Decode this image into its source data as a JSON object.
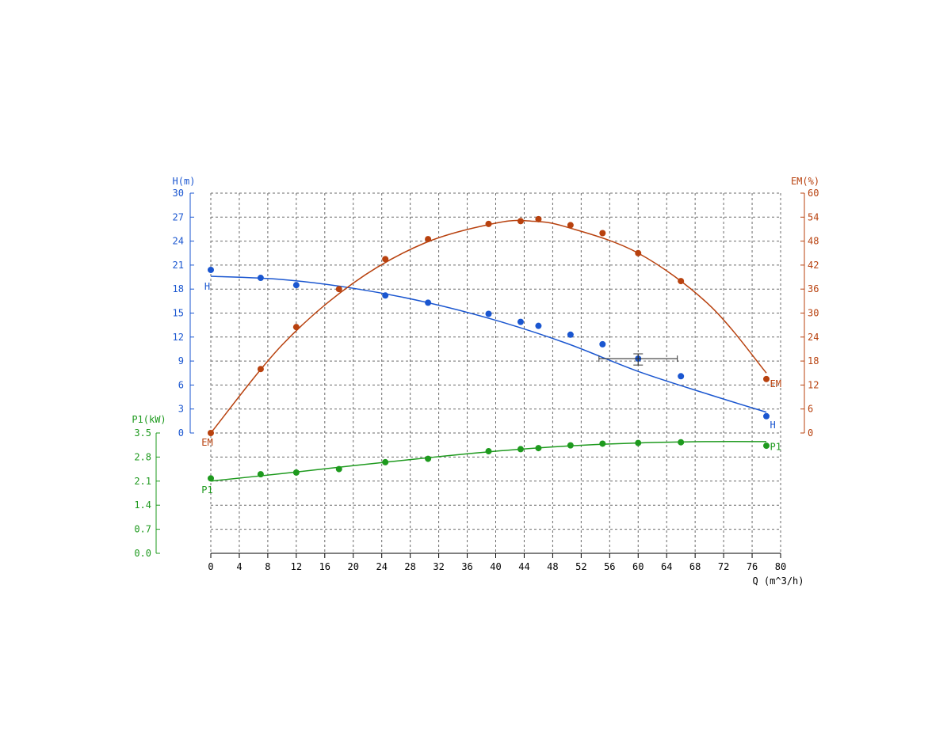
{
  "colors": {
    "H": "#1a56d0",
    "EM": "#b8410e",
    "P1": "#1e9a1e",
    "axis": "#000000",
    "grid": "#6a6a6a"
  },
  "chart_data": {
    "type": "scatter",
    "x_axis": {
      "label": "Q (m^3/h)",
      "range": [
        0,
        80
      ],
      "ticks": [
        "0",
        "4",
        "8",
        "12",
        "16",
        "20",
        "24",
        "28",
        "32",
        "36",
        "40",
        "44",
        "48",
        "52",
        "56",
        "60",
        "64",
        "68",
        "72",
        "76",
        "80"
      ]
    },
    "y_axes": [
      {
        "key": "H",
        "label": "H(m)",
        "side": "left",
        "range": [
          0,
          30
        ],
        "ticks": [
          "0",
          "3",
          "6",
          "9",
          "12",
          "15",
          "18",
          "21",
          "24",
          "27",
          "30"
        ]
      },
      {
        "key": "EM",
        "label": "EM(%)",
        "side": "right",
        "range": [
          0,
          60
        ],
        "ticks": [
          "0",
          "6",
          "12",
          "18",
          "24",
          "30",
          "36",
          "42",
          "48",
          "54",
          "60"
        ]
      },
      {
        "key": "P1",
        "label": "P1(kW)",
        "side": "left",
        "range": [
          0,
          3.5
        ],
        "ticks": [
          "0.0",
          "0.7",
          "1.4",
          "2.1",
          "2.8",
          "3.5"
        ]
      }
    ],
    "grid": true,
    "series": [
      {
        "name": "H",
        "axis": "H",
        "points": [
          [
            0,
            20.4
          ],
          [
            7,
            19.4
          ],
          [
            12,
            18.5
          ],
          [
            24.5,
            17.2
          ],
          [
            30.5,
            16.3
          ],
          [
            39,
            14.9
          ],
          [
            43.5,
            13.9
          ],
          [
            46,
            13.4
          ],
          [
            50.5,
            12.3
          ],
          [
            55,
            11.1
          ],
          [
            60,
            9.3
          ],
          [
            66,
            7.1
          ],
          [
            78,
            2.1
          ]
        ],
        "fit": [
          [
            0,
            19.6
          ],
          [
            10,
            19.2
          ],
          [
            20,
            18.1
          ],
          [
            30,
            16.4
          ],
          [
            40,
            14.1
          ],
          [
            50,
            11.2
          ],
          [
            60,
            7.7
          ],
          [
            70,
            4.8
          ],
          [
            78,
            2.6
          ]
        ]
      },
      {
        "name": "EM",
        "axis": "EM",
        "points": [
          [
            0,
            0
          ],
          [
            7,
            16
          ],
          [
            12,
            26.5
          ],
          [
            18,
            36
          ],
          [
            24.5,
            43.5
          ],
          [
            30.5,
            48.5
          ],
          [
            39,
            52.3
          ],
          [
            43.5,
            53
          ],
          [
            46,
            53.5
          ],
          [
            50.5,
            52
          ],
          [
            55,
            50
          ],
          [
            60,
            45
          ],
          [
            66,
            38
          ],
          [
            78,
            13.5
          ]
        ],
        "fit": [
          [
            0,
            0
          ],
          [
            10,
            22
          ],
          [
            20,
            37.5
          ],
          [
            30,
            47.5
          ],
          [
            40,
            52.5
          ],
          [
            45,
            53
          ],
          [
            50,
            51.5
          ],
          [
            60,
            45
          ],
          [
            70,
            32
          ],
          [
            78,
            15
          ]
        ]
      },
      {
        "name": "P1",
        "axis": "P1",
        "points": [
          [
            0,
            2.18
          ],
          [
            7,
            2.3
          ],
          [
            12,
            2.35
          ],
          [
            18,
            2.45
          ],
          [
            24.5,
            2.65
          ],
          [
            30.5,
            2.75
          ],
          [
            39,
            2.97
          ],
          [
            43.5,
            3.03
          ],
          [
            46,
            3.06
          ],
          [
            50.5,
            3.14
          ],
          [
            55,
            3.19
          ],
          [
            60,
            3.21
          ],
          [
            66,
            3.23
          ],
          [
            78,
            3.13
          ]
        ],
        "fit": [
          [
            0,
            2.1
          ],
          [
            10,
            2.32
          ],
          [
            20,
            2.55
          ],
          [
            30,
            2.77
          ],
          [
            40,
            2.97
          ],
          [
            50,
            3.12
          ],
          [
            60,
            3.21
          ],
          [
            70,
            3.25
          ],
          [
            78,
            3.25
          ]
        ]
      }
    ],
    "operating_point": {
      "Q": 60,
      "H": 9.3,
      "Q_range": [
        54.5,
        65.5
      ],
      "H_range": [
        8.5,
        9.9
      ]
    },
    "curve_labels": [
      {
        "text": "H",
        "series": "H",
        "at": [
          -0.5,
          17.9
        ]
      },
      {
        "text": "H",
        "series": "H",
        "at": [
          78.5,
          0.6
        ]
      },
      {
        "text": "EM",
        "series": "EM",
        "at": [
          -0.5,
          -3.2
        ]
      },
      {
        "text": "EM",
        "series": "EM",
        "at": [
          78.5,
          11.5
        ]
      },
      {
        "text": "P1",
        "series": "P1",
        "at": [
          -0.5,
          1.75
        ]
      },
      {
        "text": "P1",
        "series": "P1",
        "at": [
          78.5,
          3.0
        ]
      }
    ]
  }
}
